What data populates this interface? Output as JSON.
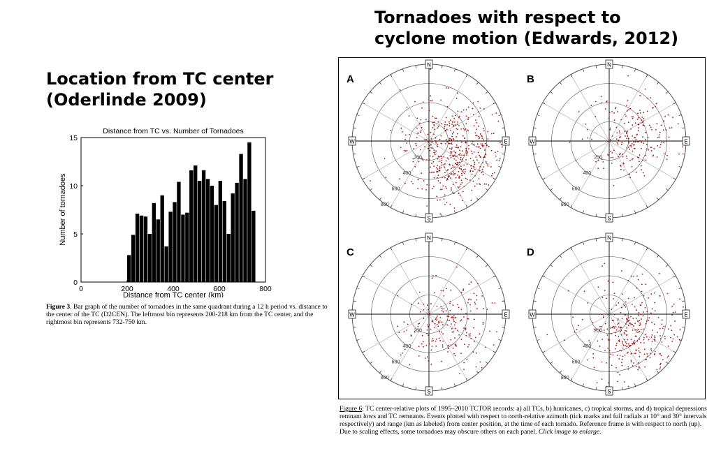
{
  "left": {
    "title_line1": "Location from TC center",
    "title_line2": "(Oderlinde 2009)",
    "caption_label": "Figure 3",
    "caption_text": ".  Bar graph of the number of tornadoes in the same quadrant during a 12 h period vs. distance to the center of the TC (D2CEN).  The leftmost bin represents 200-218 km from the TC center, and the rightmost bin represents 732-750 km."
  },
  "right": {
    "title_line1": "Tornadoes with respect to",
    "title_line2": "cyclone motion (Edwards, 2012)",
    "caption_label": "Figure 6",
    "caption_text": ":  TC center-relative plots of 1995–2010 TCTOR records: a) all TCs, b) hurricanes, c) tropical storms, and d) tropical depressions, remnant lows and TC remnants.  Events plotted with respect to north-relative azimuth (tick marks and full radials at 10° and 30° intervals respectively) and range (km as labeled) from center position, at the time of each tornado.  Reference frame is with respect to north (up).  Due to scaling effects, some tornadoes may obscure others on each panel.",
    "caption_italic": "Click image to enlarge."
  },
  "chart_data": [
    {
      "type": "bar",
      "title": "Distance from TC vs. Number of Tornadoes",
      "xlabel": "Distance from TC center (km)",
      "ylabel": "Number of tornadoes",
      "xlim": [
        0,
        800
      ],
      "ylim": [
        0,
        15
      ],
      "xticks": [
        0,
        200,
        400,
        600,
        800
      ],
      "yticks": [
        0,
        5,
        10,
        15
      ],
      "bin_width_km": 18,
      "x": [
        209,
        227,
        245,
        263,
        281,
        299,
        317,
        335,
        353,
        371,
        389,
        407,
        425,
        443,
        461,
        479,
        497,
        515,
        533,
        551,
        569,
        587,
        605,
        623,
        641,
        659,
        677,
        695,
        713,
        731,
        749
      ],
      "values": [
        2.8,
        4.9,
        7.1,
        6.9,
        6.8,
        5.0,
        8.2,
        6.5,
        9.0,
        3.7,
        7.3,
        8.3,
        10.4,
        7.0,
        7.2,
        11.6,
        12.1,
        10.5,
        11.6,
        10.7,
        10.0,
        8.0,
        10.5,
        8.4,
        5.0,
        9.2,
        10.3,
        13.3,
        10.7,
        14.5,
        7.4
      ]
    },
    {
      "type": "scatter",
      "subtype": "polar",
      "panels": [
        "A",
        "B",
        "C",
        "D"
      ],
      "cardinal_labels": [
        "N",
        "E",
        "S",
        "W"
      ],
      "range_labels": [
        "200",
        "400",
        "600",
        "800"
      ],
      "point_color": "#a01818",
      "panel_counts": [
        520,
        220,
        210,
        340
      ]
    }
  ]
}
